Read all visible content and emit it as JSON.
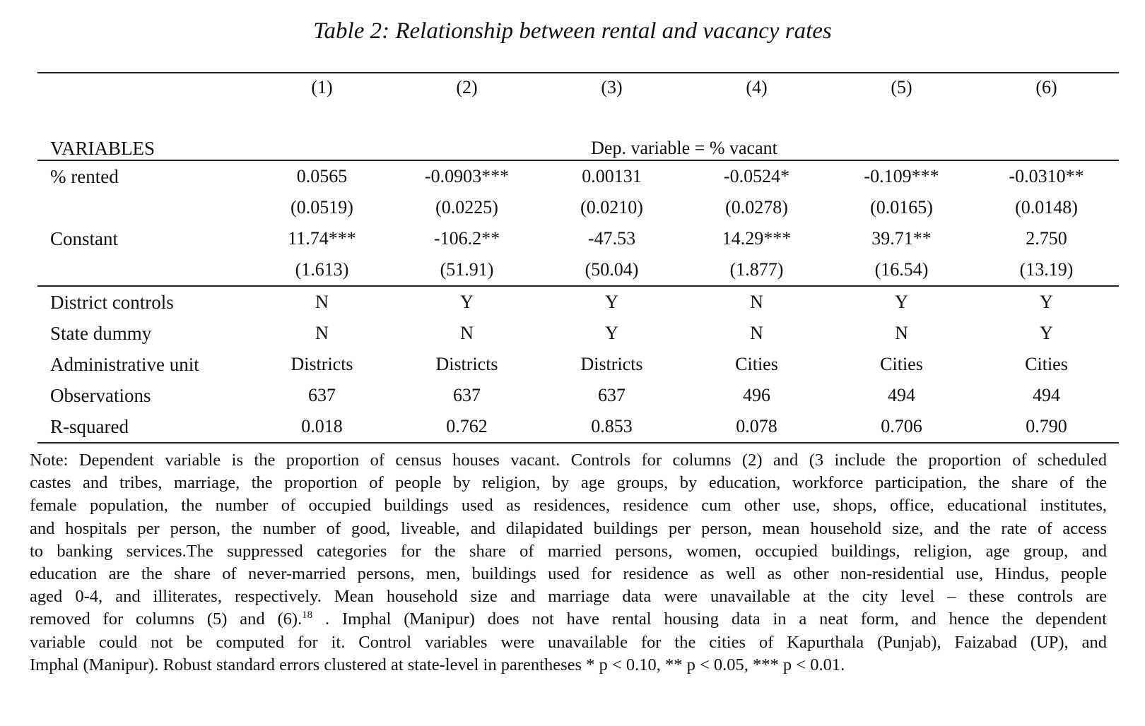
{
  "title": "Table 2: Relationship between rental and vacancy rates",
  "columns": [
    "(1)",
    "(2)",
    "(3)",
    "(4)",
    "(5)",
    "(6)"
  ],
  "variables_label": "VARIABLES",
  "dep_var_label": "Dep. variable = % vacant",
  "rows": [
    {
      "label": "% rented",
      "values": [
        "0.0565",
        "-0.0903***",
        "0.00131",
        "-0.0524*",
        "-0.109***",
        "-0.0310**"
      ]
    },
    {
      "label": "",
      "values": [
        "(0.0519)",
        "(0.0225)",
        "(0.0210)",
        "(0.0278)",
        "(0.0165)",
        "(0.0148)"
      ]
    },
    {
      "label": "Constant",
      "values": [
        "11.74***",
        "-106.2**",
        "-47.53",
        "14.29***",
        "39.71**",
        "2.750"
      ]
    },
    {
      "label": "",
      "values": [
        "(1.613)",
        "(51.91)",
        "(50.04)",
        "(1.877)",
        "(16.54)",
        "(13.19)"
      ]
    },
    {
      "label": "District controls",
      "values": [
        "N",
        "Y",
        "Y",
        "N",
        "Y",
        "Y"
      ]
    },
    {
      "label": "State dummy",
      "values": [
        "N",
        "N",
        "Y",
        "N",
        "N",
        "Y"
      ]
    },
    {
      "label": "Administrative unit",
      "values": [
        "Districts",
        "Districts",
        "Districts",
        "Cities",
        "Cities",
        "Cities"
      ]
    },
    {
      "label": "Observations",
      "values": [
        "637",
        "637",
        "637",
        "496",
        "494",
        "494"
      ]
    },
    {
      "label": "R-squared",
      "values": [
        "0.018",
        "0.762",
        "0.853",
        "0.078",
        "0.706",
        "0.790"
      ]
    }
  ],
  "note": {
    "lines": [
      "Note: Dependent variable is the proportion of census houses vacant. Controls for columns (2) and (3 include the proportion of scheduled",
      "castes and tribes, marriage, the proportion of people by religion, by age groups, by education, workforce participation, the share of the",
      "female population, the number of occupied buildings used as residences, residence cum other use, shops, office, educational institutes,",
      "and hospitals per person, the number of good, liveable, and dilapidated buildings per person, mean household size, and the rate of access",
      "to banking services.The suppressed categories for the share of married persons, women, occupied buildings, religion, age group, and",
      "education are the share of never-married persons, men, buildings used for residence as well as other non-residential use, Hindus, people",
      "aged 0-4, and illiterates, respectively. Mean household size and marriage data were unavailable at the city level – these controls are"
    ],
    "line8_before": "removed for columns (5) and (6).",
    "footnote_mark": "18",
    "line8_after": " . Imphal (Manipur) does not have rental housing data in a neat form, and hence the dependent",
    "line9": "variable could not be computed for it. Control variables were unavailable for the cities of Kapurthala (Punjab), Faizabad (UP), and",
    "line10": "Imphal (Manipur). Robust standard errors clustered at state-level in parentheses * p < 0.10, ** p < 0.05, *** p < 0.01."
  }
}
